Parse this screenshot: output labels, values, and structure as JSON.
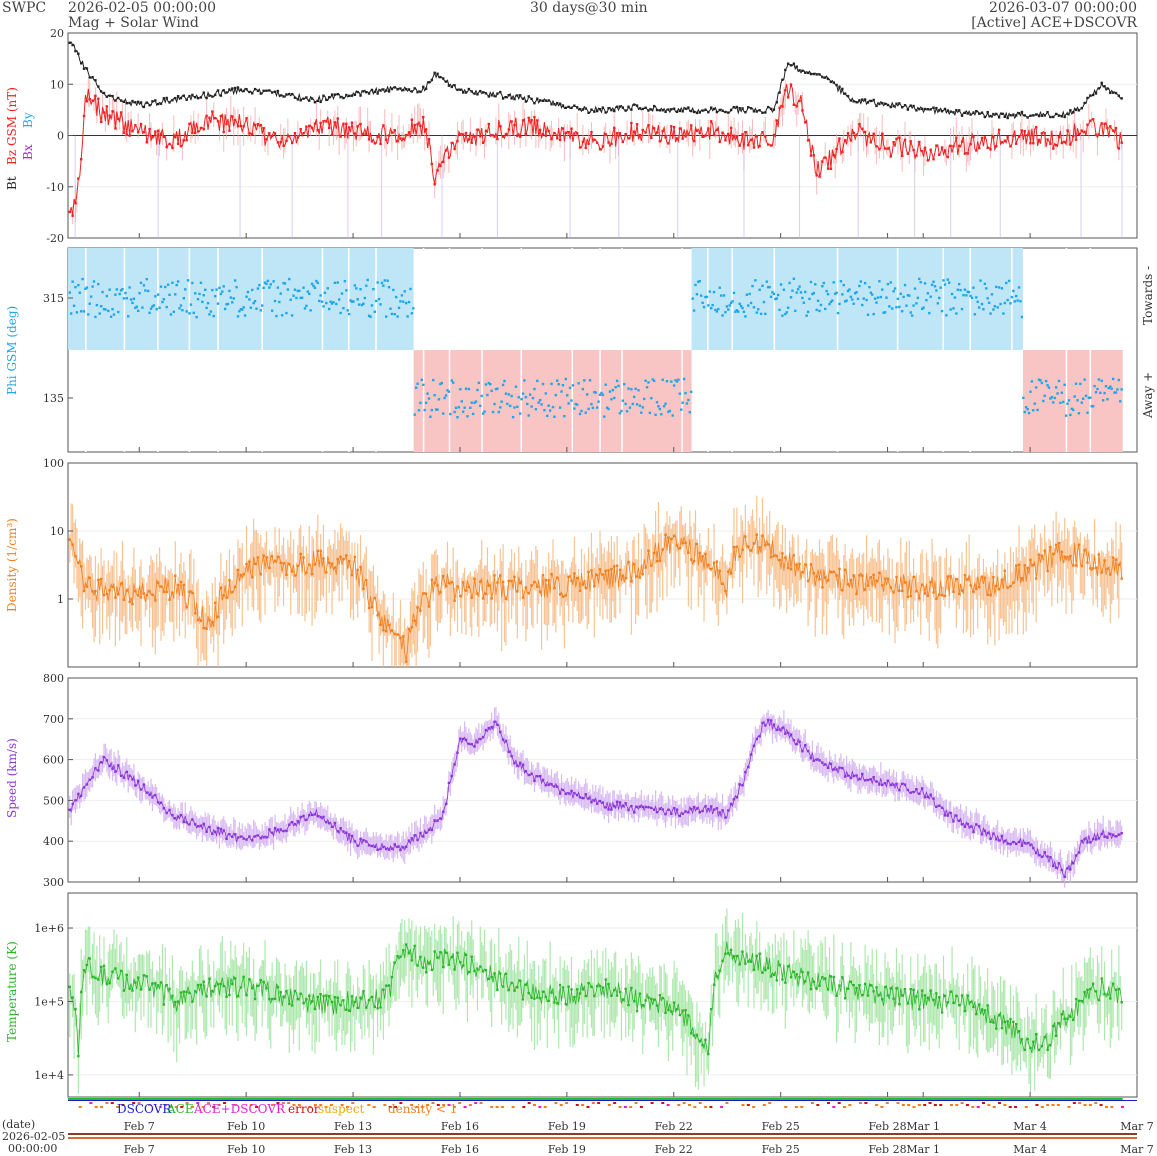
{
  "header": {
    "org": "SWPC",
    "start": "2026-02-05 00:00:00",
    "product": "Mag + Solar Wind",
    "span": "30 days@30 min",
    "end": "2026-03-07 00:00:00",
    "source": "[Active] ACE+DSCOVR"
  },
  "legend": {
    "dscovr": "DSCOVR",
    "ace": "ACE",
    "combo": "ACE+DSCOVR",
    "error": "error",
    "suspect": "suspect",
    "density": "density < 1"
  },
  "footer": {
    "date_label": "(date)",
    "date_value": "2026-02-05",
    "time_value": "00:00:00"
  },
  "colors": {
    "bt": "#222222",
    "bz": "#ee2222",
    "bx": "#9933cc",
    "by": "#2aa8e0",
    "phi": "#1ea7e8",
    "density": "#f07f1e",
    "speed": "#8a35d6",
    "temperature": "#2cb52c"
  },
  "chart_data": [
    {
      "type": "line",
      "panel": "mag",
      "ylabel_parts": [
        "Bt",
        "Bz GSM (nT)",
        "Bx",
        "By"
      ],
      "ylim": [
        -20,
        20
      ],
      "yticks": [
        "20",
        "10",
        "0",
        "-10",
        "-20"
      ],
      "x_start": "2026-02-05",
      "x_end": "2026-03-07",
      "series": [
        {
          "name": "Bt",
          "x_days": [
            0.1,
            0.5,
            1,
            2,
            3,
            4,
            5,
            6,
            7,
            8,
            9,
            10,
            10.3,
            11,
            12,
            13,
            13.8,
            14.6,
            15,
            16,
            17,
            18,
            19,
            19.8,
            20.2,
            20.8,
            21.3,
            22,
            23,
            24,
            25,
            26,
            27,
            28,
            28.5,
            29,
            29.6
          ],
          "values": [
            18,
            13,
            8,
            6,
            7,
            8,
            9,
            8,
            7,
            8,
            9,
            9,
            12,
            9,
            8,
            7,
            6,
            5,
            5,
            5.5,
            5,
            5,
            5,
            5,
            14,
            12,
            11,
            7,
            6,
            5,
            4.5,
            4,
            4,
            4,
            6,
            10,
            7
          ]
        },
        {
          "name": "Bz",
          "x_days": [
            0.1,
            0.3,
            0.5,
            1,
            2,
            3,
            4,
            5,
            6,
            7,
            8,
            9,
            10,
            10.3,
            10.5,
            11,
            12,
            13,
            14,
            15,
            16,
            17,
            18,
            19,
            19.8,
            20.2,
            20.6,
            21,
            21.5,
            22,
            23,
            24,
            25,
            26,
            27,
            28,
            28.5,
            29,
            29.6
          ],
          "values": [
            -15,
            -10,
            8,
            4,
            1,
            -1,
            3,
            2,
            -2,
            2,
            1,
            0,
            2,
            -8,
            -4,
            -1,
            1,
            2,
            0,
            -1,
            1,
            0,
            1,
            -1,
            0,
            9,
            6,
            -7,
            -4,
            1,
            -2,
            -3,
            -2,
            -1,
            0,
            -1,
            2,
            1,
            -1
          ]
        }
      ]
    },
    {
      "type": "scatter",
      "panel": "phi",
      "ylabel": "Phi GSM (deg)",
      "yticks": [
        "315",
        "135"
      ],
      "right_labels": [
        "Towards -",
        "Away +"
      ],
      "sectors": [
        {
          "from_day": 0,
          "to_day": 9.7,
          "sector": "towards"
        },
        {
          "from_day": 9.7,
          "to_day": 17.5,
          "sector": "away"
        },
        {
          "from_day": 17.5,
          "to_day": 26.8,
          "sector": "towards"
        },
        {
          "from_day": 26.8,
          "to_day": 29.6,
          "sector": "away"
        }
      ]
    },
    {
      "type": "line",
      "panel": "density",
      "ylabel": "Density (1/cm³)",
      "yscale": "log",
      "ylim": [
        0.1,
        100
      ],
      "yticks": [
        "100",
        "10",
        "1"
      ],
      "x_days": [
        0.1,
        0.5,
        1,
        2,
        3,
        4,
        4.5,
        5,
        6,
        7,
        8,
        8.5,
        9,
        9.5,
        10,
        10.5,
        11,
        12,
        13,
        14,
        15,
        16,
        17,
        18,
        18.5,
        19,
        20,
        21,
        22,
        23,
        24,
        25,
        26,
        27,
        28,
        29,
        29.6
      ],
      "values": [
        5,
        1.5,
        1.3,
        1.2,
        1.5,
        0.3,
        1.5,
        3,
        3,
        3.5,
        3,
        0.8,
        0.4,
        0.15,
        0.9,
        1.8,
        1.2,
        1.5,
        1.5,
        1.6,
        2,
        2.5,
        7,
        3,
        1.5,
        8,
        4,
        2,
        1.8,
        1.6,
        1.5,
        1.5,
        1.7,
        2.5,
        5,
        3,
        2.5
      ]
    },
    {
      "type": "line",
      "panel": "speed",
      "ylabel": "Speed (km/s)",
      "ylim": [
        300,
        800
      ],
      "yticks": [
        "800",
        "700",
        "600",
        "500",
        "400",
        "300"
      ],
      "x_days": [
        0,
        1,
        2,
        3,
        4,
        5,
        6,
        7,
        8,
        9,
        9.5,
        10,
        10.5,
        11,
        11.5,
        12,
        12.5,
        13,
        14,
        15,
        16,
        17,
        18,
        18.5,
        19,
        19.5,
        20,
        21,
        22,
        23,
        24,
        24.5,
        25,
        26,
        27,
        27.5,
        28,
        28.5,
        29,
        29.6
      ],
      "values": [
        470,
        600,
        540,
        460,
        430,
        400,
        430,
        470,
        400,
        380,
        390,
        420,
        460,
        650,
        640,
        690,
        600,
        560,
        520,
        490,
        480,
        470,
        480,
        460,
        560,
        690,
        680,
        600,
        560,
        540,
        520,
        480,
        450,
        410,
        390,
        360,
        320,
        400,
        420,
        410
      ]
    },
    {
      "type": "line",
      "panel": "temperature",
      "ylabel": "Temperature (K)",
      "yscale": "log",
      "yticks": [
        "1e+6",
        "1e+5",
        "1e+4"
      ],
      "x_days": [
        0.1,
        0.3,
        0.5,
        1,
        2,
        3,
        4,
        5,
        6,
        7,
        8,
        9,
        9.5,
        10,
        10.5,
        11,
        12,
        13,
        14,
        15,
        16,
        17,
        18,
        18.5,
        19,
        20,
        21,
        22,
        23,
        24,
        25,
        26,
        26.5,
        27,
        27.5,
        28,
        29,
        29.6
      ],
      "values": [
        120000,
        20000,
        300000,
        220000,
        180000,
        100000,
        150000,
        160000,
        120000,
        90000,
        100000,
        120000,
        500000,
        300000,
        400000,
        350000,
        200000,
        130000,
        120000,
        150000,
        100000,
        80000,
        20000,
        500000,
        400000,
        250000,
        180000,
        150000,
        120000,
        100000,
        100000,
        60000,
        40000,
        25000,
        30000,
        60000,
        150000,
        110000
      ]
    }
  ],
  "x_ticks": [
    "Feb 7",
    "Feb 10",
    "Feb 13",
    "Feb 16",
    "Feb 19",
    "Feb 22",
    "Feb 25",
    "Feb 28",
    "Mar 1",
    "Mar 4",
    "Mar 7"
  ]
}
